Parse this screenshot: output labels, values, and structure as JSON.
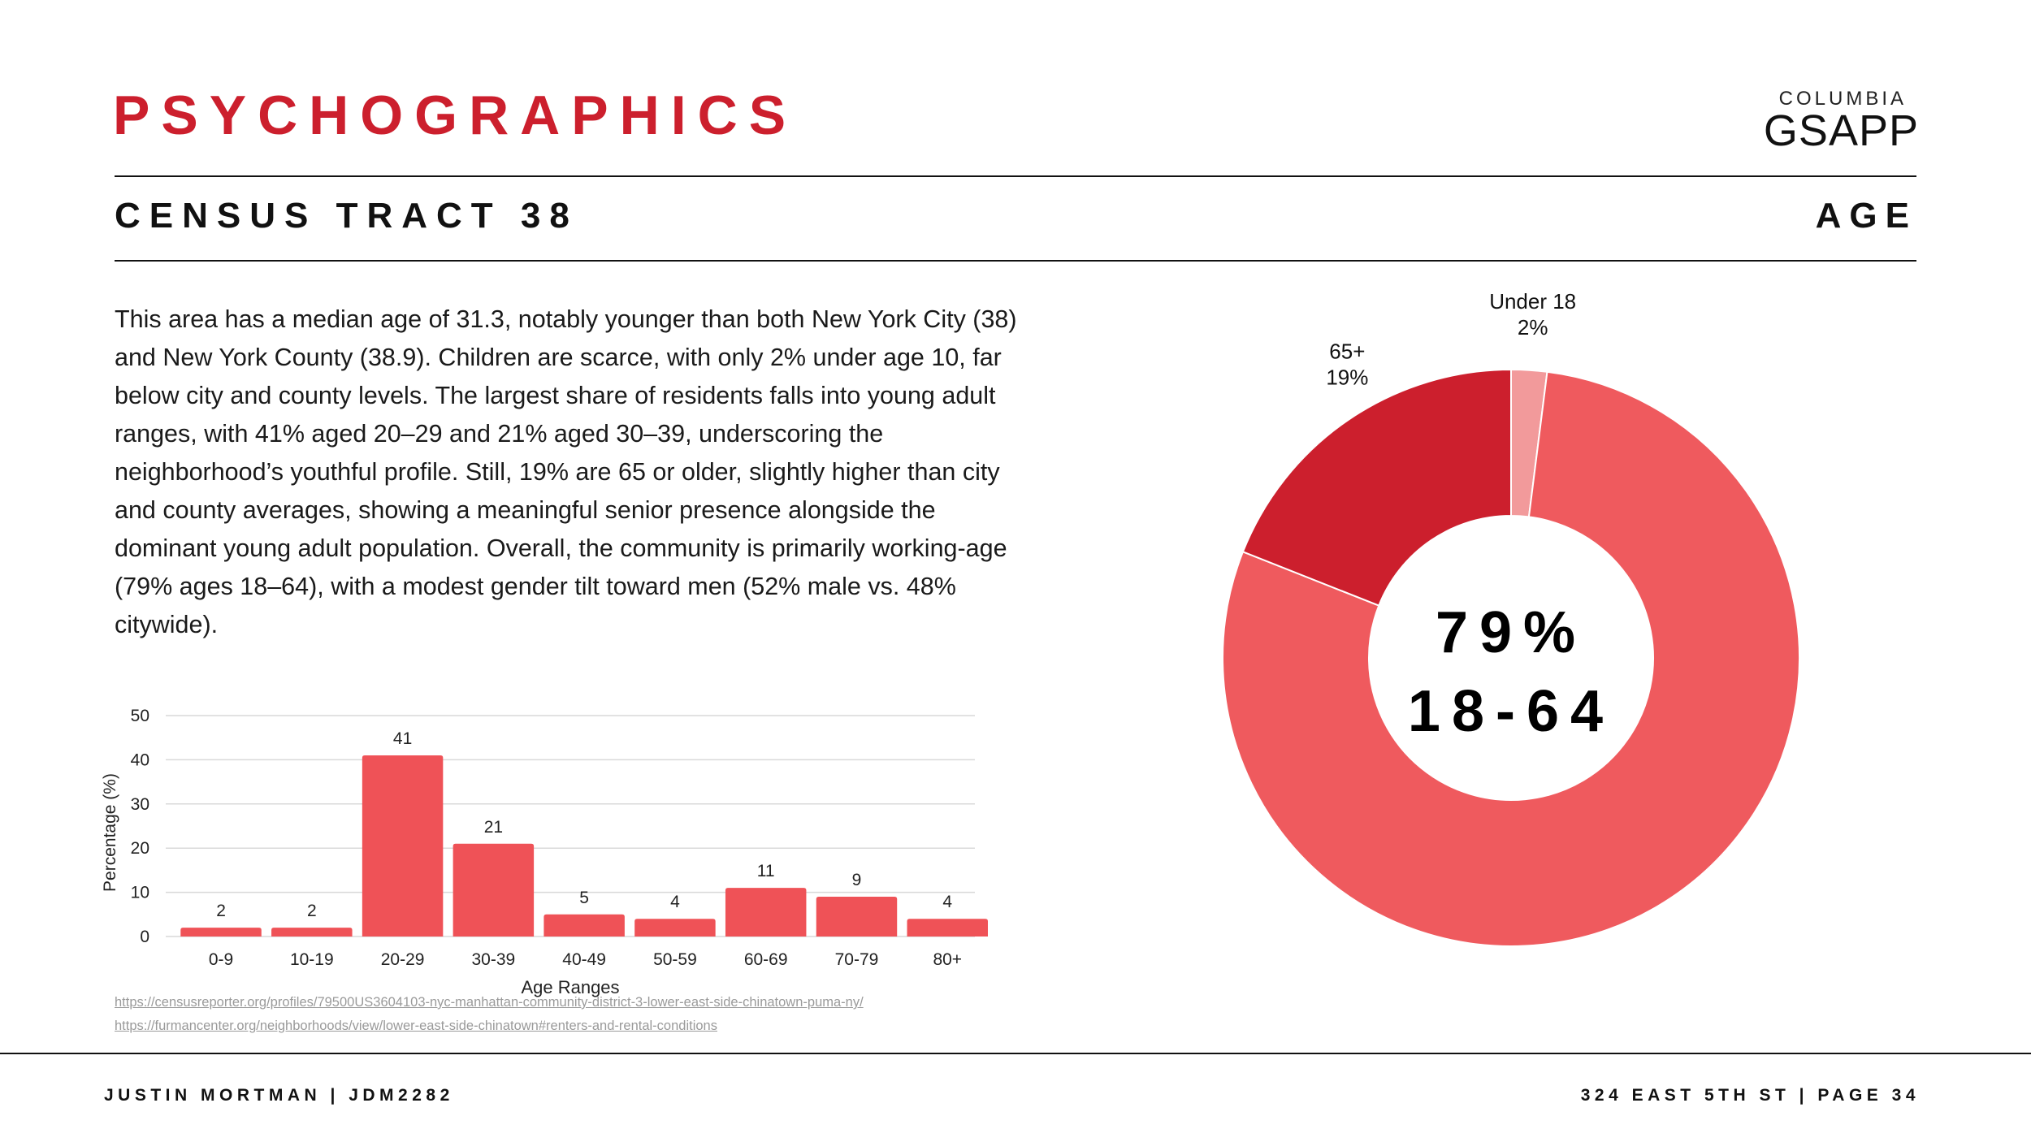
{
  "header": {
    "title": "PSYCHOGRAPHICS",
    "logo_top": "COLUMBIA",
    "logo_main": "GSAPP",
    "subtitle": "CENSUS TRACT 38",
    "section": "AGE"
  },
  "body": {
    "paragraph": "This area has a median age of 31.3, notably younger than both New York City (38) and New York County (38.9). Children are scarce, with only 2% under age 10, far below city and county levels. The largest share of residents falls into young adult ranges, with 41% aged 20–29 and 21% aged 30–39, underscoring the neighborhood’s youthful profile. Still, 19% are 65 or older, slightly higher than city and county averages, showing a meaningful senior presence alongside the dominant young adult population. Overall, the community is primarily working-age (79% ages 18–64), with a modest gender tilt toward men (52% male vs. 48% citywide)."
  },
  "sources": [
    "https://censusreporter.org/profiles/79500US3604103-nyc-manhattan-community-district-3-lower-east-side-chinatown-puma-ny/",
    "https://furmancenter.org/neighborhoods/view/lower-east-side-chinatown#renters-and-rental-conditions"
  ],
  "footer": {
    "left": "JUSTIN MORTMAN | JDM2282",
    "right": "324 EAST 5TH ST | PAGE 34"
  },
  "colors": {
    "brand_red": "#cc1f2d",
    "bar": "#ef5257",
    "donut_main": "#ef5a5e",
    "donut_senior": "#cc1f2d",
    "donut_youth": "#f29a9b"
  },
  "chart_data": [
    {
      "type": "bar",
      "categories": [
        "0-9",
        "10-19",
        "20-29",
        "30-39",
        "40-49",
        "50-59",
        "60-69",
        "70-79",
        "80+"
      ],
      "values": [
        2,
        2,
        41,
        21,
        5,
        4,
        11,
        9,
        4
      ],
      "xlabel": "Age Ranges",
      "ylabel": "Percentage (%)",
      "ylim": [
        0,
        50
      ],
      "yticks": [
        0,
        10,
        20,
        30,
        40,
        50
      ],
      "grid": true
    },
    {
      "type": "pie",
      "style": "donut",
      "slices": [
        {
          "label": "Under 18",
          "value": 2,
          "pct_label": "2%"
        },
        {
          "label": "18-64",
          "value": 79,
          "pct_label": "79%"
        },
        {
          "label": "65+",
          "value": 19,
          "pct_label": "19%"
        }
      ],
      "center_value": "79%",
      "center_label": "18-64"
    }
  ]
}
